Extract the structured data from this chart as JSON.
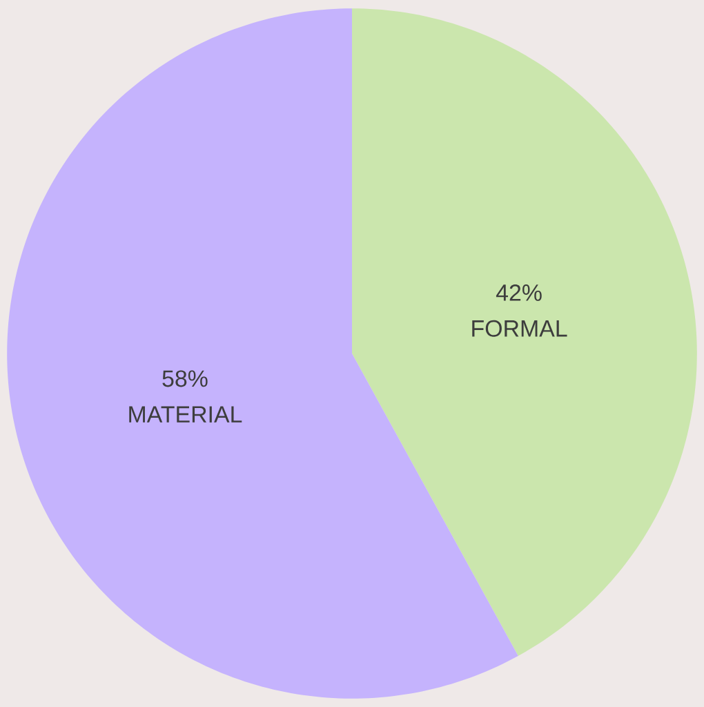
{
  "chart_data": {
    "type": "pie",
    "categories": [
      "FORMAL",
      "MATERIAL"
    ],
    "values": [
      42,
      58
    ],
    "colors": [
      "#cbe6ad",
      "#c5b3fd"
    ],
    "value_labels": [
      "42%",
      "58%"
    ]
  }
}
